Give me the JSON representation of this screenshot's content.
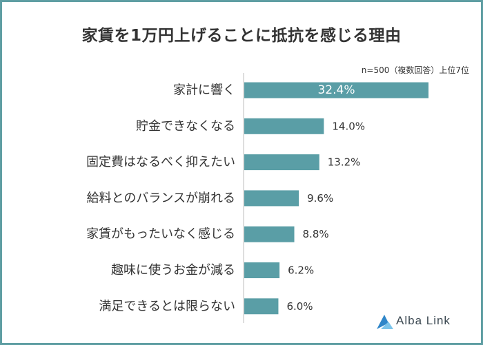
{
  "title": "家賃を1万円上げることに抵抗を感じる理由",
  "note": "n=500（複数回答）上位7位",
  "brand": "Alba Link",
  "colors": {
    "bar": "#5a9ea6",
    "frame": "#5f9ea3",
    "text": "#333333",
    "logo": "#3a4750"
  },
  "chart_data": {
    "type": "bar",
    "orientation": "horizontal",
    "categories": [
      "家計に響く",
      "貯金できなくなる",
      "固定費はなるべく抑えたい",
      "給料とのバランスが崩れる",
      "家賃がもったいなく感じる",
      "趣味に使うお金が減る",
      "満足できるとは限らない"
    ],
    "values": [
      32.4,
      14.0,
      13.2,
      9.6,
      8.8,
      6.2,
      6.0
    ],
    "value_labels": [
      "32.4%",
      "14.0%",
      "13.2%",
      "9.6%",
      "8.8%",
      "6.2%",
      "6.0%"
    ],
    "xlim": [
      0,
      32.4
    ],
    "grid": false,
    "legend": "none"
  }
}
